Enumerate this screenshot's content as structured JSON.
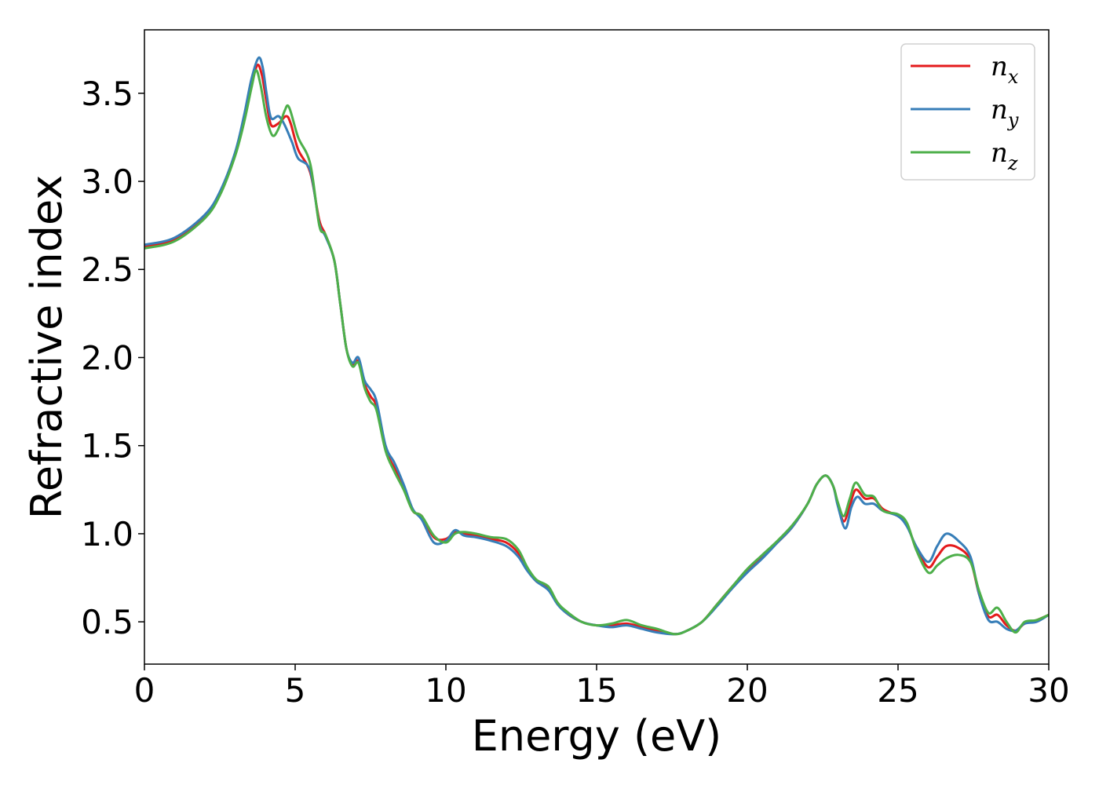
{
  "chart_data": {
    "type": "line",
    "title": "",
    "xlabel": "Energy (eV)",
    "ylabel": "Refractive index",
    "xlim": [
      0,
      30
    ],
    "ylim": [
      0.26,
      3.86
    ],
    "x_ticks": [
      "0",
      "5",
      "10",
      "15",
      "20",
      "25",
      "30"
    ],
    "y_ticks": [
      "0.5",
      "1.0",
      "1.5",
      "2.0",
      "2.5",
      "3.0",
      "3.5"
    ],
    "grid": false,
    "legend_position": "top-right",
    "series": [
      {
        "name": "n",
        "subscript": "x",
        "color": "#e41a1c",
        "points": [
          [
            0,
            2.63
          ],
          [
            1,
            2.67
          ],
          [
            2,
            2.8
          ],
          [
            2.5,
            2.93
          ],
          [
            3,
            3.15
          ],
          [
            3.3,
            3.35
          ],
          [
            3.55,
            3.55
          ],
          [
            3.75,
            3.66
          ],
          [
            3.9,
            3.6
          ],
          [
            4.05,
            3.45
          ],
          [
            4.2,
            3.32
          ],
          [
            4.45,
            3.33
          ],
          [
            4.7,
            3.37
          ],
          [
            4.85,
            3.33
          ],
          [
            5.1,
            3.18
          ],
          [
            5.5,
            3.05
          ],
          [
            5.8,
            2.78
          ],
          [
            6,
            2.7
          ],
          [
            6.3,
            2.55
          ],
          [
            6.5,
            2.3
          ],
          [
            6.7,
            2.05
          ],
          [
            6.9,
            1.96
          ],
          [
            7.1,
            1.98
          ],
          [
            7.3,
            1.85
          ],
          [
            7.5,
            1.78
          ],
          [
            7.7,
            1.72
          ],
          [
            8,
            1.48
          ],
          [
            8.3,
            1.37
          ],
          [
            8.6,
            1.26
          ],
          [
            8.9,
            1.13
          ],
          [
            9.2,
            1.1
          ],
          [
            9.6,
            0.98
          ],
          [
            10,
            0.97
          ],
          [
            10.3,
            1.01
          ],
          [
            10.6,
            1.0
          ],
          [
            11,
            0.99
          ],
          [
            11.5,
            0.97
          ],
          [
            12,
            0.95
          ],
          [
            12.4,
            0.89
          ],
          [
            12.7,
            0.8
          ],
          [
            13,
            0.73
          ],
          [
            13.4,
            0.69
          ],
          [
            13.7,
            0.61
          ],
          [
            14,
            0.55
          ],
          [
            14.5,
            0.5
          ],
          [
            15,
            0.48
          ],
          [
            15.5,
            0.48
          ],
          [
            16,
            0.49
          ],
          [
            16.5,
            0.47
          ],
          [
            17,
            0.45
          ],
          [
            17.6,
            0.43
          ],
          [
            18,
            0.45
          ],
          [
            18.5,
            0.5
          ],
          [
            19,
            0.6
          ],
          [
            19.5,
            0.7
          ],
          [
            20,
            0.79
          ],
          [
            20.5,
            0.87
          ],
          [
            21,
            0.95
          ],
          [
            21.5,
            1.04
          ],
          [
            22,
            1.17
          ],
          [
            22.3,
            1.28
          ],
          [
            22.6,
            1.33
          ],
          [
            22.85,
            1.27
          ],
          [
            23,
            1.17
          ],
          [
            23.2,
            1.07
          ],
          [
            23.4,
            1.16
          ],
          [
            23.6,
            1.25
          ],
          [
            23.9,
            1.2
          ],
          [
            24.2,
            1.2
          ],
          [
            24.5,
            1.14
          ],
          [
            25,
            1.1
          ],
          [
            25.3,
            1.05
          ],
          [
            25.6,
            0.92
          ],
          [
            26,
            0.81
          ],
          [
            26.3,
            0.87
          ],
          [
            26.6,
            0.93
          ],
          [
            27,
            0.92
          ],
          [
            27.4,
            0.85
          ],
          [
            27.7,
            0.65
          ],
          [
            28,
            0.53
          ],
          [
            28.3,
            0.54
          ],
          [
            28.6,
            0.48
          ],
          [
            28.9,
            0.45
          ],
          [
            29.2,
            0.49
          ],
          [
            29.6,
            0.51
          ],
          [
            30,
            0.54
          ]
        ]
      },
      {
        "name": "n",
        "subscript": "y",
        "color": "#377eb8",
        "points": [
          [
            0,
            2.64
          ],
          [
            1,
            2.68
          ],
          [
            2,
            2.81
          ],
          [
            2.5,
            2.94
          ],
          [
            3,
            3.16
          ],
          [
            3.3,
            3.37
          ],
          [
            3.55,
            3.58
          ],
          [
            3.78,
            3.7
          ],
          [
            3.92,
            3.65
          ],
          [
            4.05,
            3.5
          ],
          [
            4.2,
            3.36
          ],
          [
            4.45,
            3.37
          ],
          [
            4.65,
            3.32
          ],
          [
            4.9,
            3.22
          ],
          [
            5.1,
            3.13
          ],
          [
            5.5,
            3.06
          ],
          [
            5.8,
            2.76
          ],
          [
            6,
            2.69
          ],
          [
            6.3,
            2.55
          ],
          [
            6.5,
            2.3
          ],
          [
            6.7,
            2.05
          ],
          [
            6.9,
            1.97
          ],
          [
            7.1,
            2.0
          ],
          [
            7.3,
            1.87
          ],
          [
            7.5,
            1.82
          ],
          [
            7.7,
            1.75
          ],
          [
            8,
            1.5
          ],
          [
            8.3,
            1.4
          ],
          [
            8.6,
            1.28
          ],
          [
            8.9,
            1.14
          ],
          [
            9.2,
            1.08
          ],
          [
            9.6,
            0.95
          ],
          [
            10,
            0.96
          ],
          [
            10.3,
            1.02
          ],
          [
            10.6,
            0.99
          ],
          [
            11,
            0.98
          ],
          [
            11.5,
            0.96
          ],
          [
            12,
            0.93
          ],
          [
            12.4,
            0.87
          ],
          [
            12.7,
            0.79
          ],
          [
            13,
            0.73
          ],
          [
            13.4,
            0.68
          ],
          [
            13.7,
            0.6
          ],
          [
            14,
            0.55
          ],
          [
            14.5,
            0.5
          ],
          [
            15,
            0.48
          ],
          [
            15.5,
            0.47
          ],
          [
            16,
            0.48
          ],
          [
            16.5,
            0.46
          ],
          [
            17,
            0.44
          ],
          [
            17.6,
            0.43
          ],
          [
            18,
            0.45
          ],
          [
            18.5,
            0.5
          ],
          [
            19,
            0.59
          ],
          [
            19.5,
            0.69
          ],
          [
            20,
            0.78
          ],
          [
            20.5,
            0.86
          ],
          [
            21,
            0.95
          ],
          [
            21.5,
            1.04
          ],
          [
            22,
            1.17
          ],
          [
            22.3,
            1.28
          ],
          [
            22.6,
            1.33
          ],
          [
            22.85,
            1.27
          ],
          [
            23,
            1.16
          ],
          [
            23.25,
            1.03
          ],
          [
            23.45,
            1.15
          ],
          [
            23.65,
            1.21
          ],
          [
            23.9,
            1.17
          ],
          [
            24.2,
            1.17
          ],
          [
            24.5,
            1.13
          ],
          [
            25,
            1.1
          ],
          [
            25.3,
            1.04
          ],
          [
            25.6,
            0.93
          ],
          [
            26,
            0.84
          ],
          [
            26.3,
            0.93
          ],
          [
            26.6,
            1.0
          ],
          [
            27,
            0.96
          ],
          [
            27.4,
            0.87
          ],
          [
            27.7,
            0.65
          ],
          [
            28,
            0.51
          ],
          [
            28.3,
            0.5
          ],
          [
            28.6,
            0.46
          ],
          [
            28.9,
            0.45
          ],
          [
            29.2,
            0.49
          ],
          [
            29.6,
            0.5
          ],
          [
            30,
            0.54
          ]
        ]
      },
      {
        "name": "n",
        "subscript": "z",
        "color": "#4daf4a",
        "points": [
          [
            0,
            2.62
          ],
          [
            1,
            2.66
          ],
          [
            2,
            2.79
          ],
          [
            2.5,
            2.92
          ],
          [
            3,
            3.14
          ],
          [
            3.3,
            3.33
          ],
          [
            3.55,
            3.53
          ],
          [
            3.7,
            3.63
          ],
          [
            3.85,
            3.55
          ],
          [
            4.05,
            3.36
          ],
          [
            4.25,
            3.26
          ],
          [
            4.45,
            3.3
          ],
          [
            4.65,
            3.4
          ],
          [
            4.8,
            3.42
          ],
          [
            5.1,
            3.25
          ],
          [
            5.5,
            3.1
          ],
          [
            5.8,
            2.75
          ],
          [
            6,
            2.7
          ],
          [
            6.3,
            2.55
          ],
          [
            6.5,
            2.3
          ],
          [
            6.7,
            2.05
          ],
          [
            6.9,
            1.95
          ],
          [
            7.1,
            1.97
          ],
          [
            7.3,
            1.83
          ],
          [
            7.5,
            1.75
          ],
          [
            7.7,
            1.7
          ],
          [
            8,
            1.47
          ],
          [
            8.3,
            1.35
          ],
          [
            8.6,
            1.25
          ],
          [
            8.9,
            1.13
          ],
          [
            9.2,
            1.1
          ],
          [
            9.6,
            0.99
          ],
          [
            10,
            0.95
          ],
          [
            10.3,
            1.0
          ],
          [
            10.6,
            1.01
          ],
          [
            11,
            1.0
          ],
          [
            11.5,
            0.98
          ],
          [
            12,
            0.97
          ],
          [
            12.4,
            0.91
          ],
          [
            12.7,
            0.81
          ],
          [
            13,
            0.74
          ],
          [
            13.4,
            0.7
          ],
          [
            13.7,
            0.61
          ],
          [
            14,
            0.56
          ],
          [
            14.5,
            0.5
          ],
          [
            15,
            0.48
          ],
          [
            15.5,
            0.49
          ],
          [
            16,
            0.51
          ],
          [
            16.5,
            0.48
          ],
          [
            17,
            0.46
          ],
          [
            17.6,
            0.43
          ],
          [
            18,
            0.45
          ],
          [
            18.5,
            0.5
          ],
          [
            19,
            0.6
          ],
          [
            19.5,
            0.7
          ],
          [
            20,
            0.8
          ],
          [
            20.5,
            0.88
          ],
          [
            21,
            0.96
          ],
          [
            21.5,
            1.05
          ],
          [
            22,
            1.17
          ],
          [
            22.3,
            1.28
          ],
          [
            22.6,
            1.33
          ],
          [
            22.85,
            1.27
          ],
          [
            23,
            1.18
          ],
          [
            23.2,
            1.1
          ],
          [
            23.4,
            1.2
          ],
          [
            23.6,
            1.29
          ],
          [
            23.9,
            1.22
          ],
          [
            24.2,
            1.21
          ],
          [
            24.5,
            1.13
          ],
          [
            25,
            1.11
          ],
          [
            25.3,
            1.06
          ],
          [
            25.6,
            0.91
          ],
          [
            26,
            0.78
          ],
          [
            26.3,
            0.82
          ],
          [
            26.6,
            0.86
          ],
          [
            27,
            0.88
          ],
          [
            27.4,
            0.84
          ],
          [
            27.7,
            0.67
          ],
          [
            28,
            0.55
          ],
          [
            28.3,
            0.58
          ],
          [
            28.6,
            0.5
          ],
          [
            28.9,
            0.44
          ],
          [
            29.2,
            0.5
          ],
          [
            29.6,
            0.51
          ],
          [
            30,
            0.54
          ]
        ]
      }
    ]
  }
}
